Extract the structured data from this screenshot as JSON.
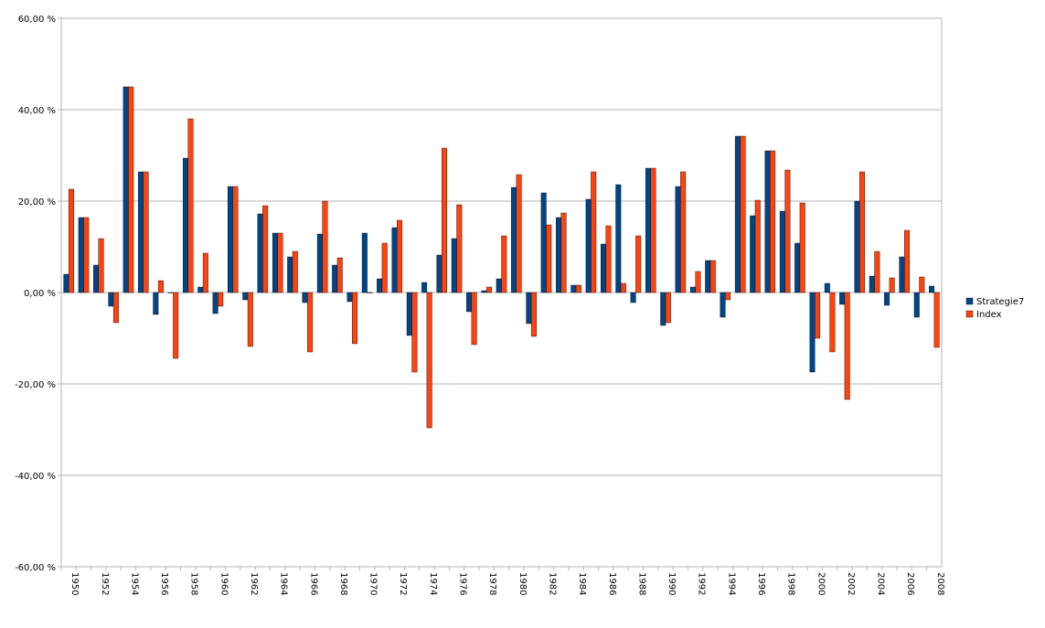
{
  "chart_data": {
    "type": "bar",
    "title": "",
    "xlabel": "",
    "ylabel": "",
    "ylim": [
      -60,
      60
    ],
    "yticks": [
      60,
      40,
      20,
      0,
      -20,
      -40,
      -60
    ],
    "ytick_labels": [
      "60,00 %",
      "40,00 %",
      "20,00 %",
      "0,00 %",
      "-20,00 %",
      "-40,00 %",
      "-60,00 %"
    ],
    "grid": true,
    "legend_placement": "right",
    "categories": [
      1950,
      1951,
      1952,
      1953,
      1954,
      1955,
      1956,
      1957,
      1958,
      1959,
      1960,
      1961,
      1962,
      1963,
      1964,
      1965,
      1966,
      1967,
      1968,
      1969,
      1970,
      1971,
      1972,
      1973,
      1974,
      1975,
      1976,
      1977,
      1978,
      1979,
      1980,
      1981,
      1982,
      1983,
      1984,
      1985,
      1986,
      1987,
      1988,
      1989,
      1990,
      1991,
      1992,
      1993,
      1994,
      1995,
      1996,
      1997,
      1998,
      1999,
      2000,
      2001,
      2002,
      2003,
      2004,
      2005,
      2006,
      2007,
      2008
    ],
    "xtick_labels": [
      "1950",
      "1952",
      "1954",
      "1956",
      "1958",
      "1960",
      "1962",
      "1964",
      "1966",
      "1968",
      "1970",
      "1972",
      "1974",
      "1976",
      "1978",
      "1980",
      "1982",
      "1984",
      "1986",
      "1988",
      "1990",
      "1992",
      "1994",
      "1996",
      "1998",
      "2000",
      "2002",
      "2004",
      "2006",
      "2008"
    ],
    "series": [
      {
        "name": "Strategie7",
        "color": "#004586",
        "values": [
          4,
          16.4,
          6,
          -3,
          45,
          26.4,
          -4.8,
          0,
          29.4,
          1.2,
          -4.6,
          23.2,
          -1.6,
          17.2,
          13,
          7.8,
          -2.2,
          12.8,
          6,
          -2,
          13,
          3,
          14.2,
          -9.4,
          2.2,
          8.2,
          11.8,
          -4.2,
          0.4,
          3,
          23,
          -6.8,
          21.8,
          16.4,
          1.6,
          20.4,
          10.6,
          23.6,
          -2.2,
          27.2,
          -7.2,
          23.2,
          1.2,
          7,
          -5.4,
          34.2,
          16.8,
          31,
          17.8,
          10.8,
          -17.4,
          2,
          -2.6,
          20,
          3.6,
          -2.8,
          7.8,
          -5.4,
          1.4
        ]
      },
      {
        "name": "Index",
        "color": "#ff420e",
        "values": [
          22.6,
          16.4,
          11.8,
          -6.6,
          45,
          26.4,
          2.6,
          -14.4,
          38,
          8.6,
          -3,
          23.2,
          -11.8,
          19,
          13,
          9,
          -13,
          20,
          7.6,
          -11.2,
          0,
          10.8,
          15.8,
          -17.4,
          -29.6,
          31.6,
          19.2,
          -11.4,
          1.2,
          12.4,
          25.8,
          -9.6,
          14.8,
          17.4,
          1.6,
          26.4,
          14.6,
          2,
          12.4,
          27.2,
          -6.6,
          26.4,
          4.6,
          7,
          -1.6,
          34.2,
          20.2,
          31,
          26.8,
          19.6,
          -10,
          -13,
          -23.4,
          26.4,
          9,
          3.2,
          13.6,
          3.4,
          -12
        ]
      }
    ]
  }
}
